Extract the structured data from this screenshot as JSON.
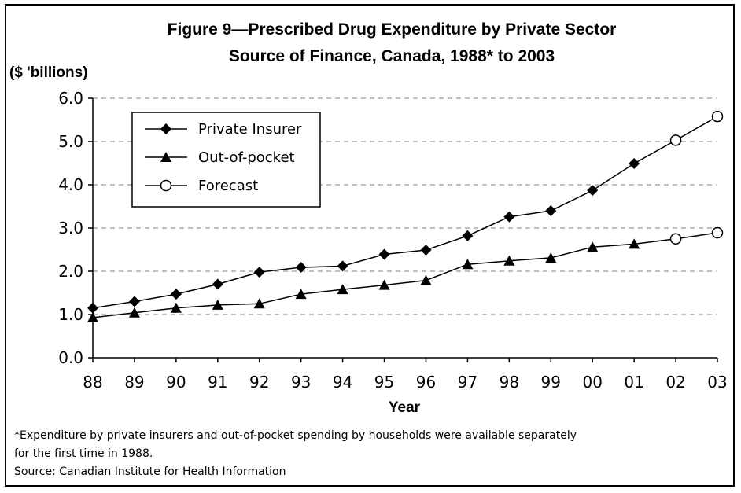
{
  "chart_data": {
    "type": "line",
    "title": [
      "Figure 9—Prescribed Drug Expenditure by Private Sector",
      "Source of Finance, Canada, 1988* to 2003"
    ],
    "unit_label": "($ 'billions)",
    "xlabel": "Year",
    "ylabel": "",
    "categories": [
      "88",
      "89",
      "90",
      "91",
      "92",
      "93",
      "94",
      "95",
      "96",
      "97",
      "98",
      "99",
      "00",
      "01",
      "02",
      "03"
    ],
    "yticks": [
      "0.0",
      "1.0",
      "2.0",
      "3.0",
      "4.0",
      "5.0",
      "6.0"
    ],
    "ylim": [
      0,
      6
    ],
    "grid": "horizontal dashed",
    "legend_position": "top-left",
    "series": [
      {
        "name": "Private Insurer",
        "marker": "diamond",
        "color": "#000000",
        "values": [
          1.15,
          1.3,
          1.47,
          1.7,
          1.98,
          2.09,
          2.12,
          2.39,
          2.49,
          2.82,
          3.26,
          3.4,
          3.87,
          4.49,
          5.03,
          5.58
        ],
        "forecast_from_index": 14
      },
      {
        "name": "Out-of-pocket",
        "marker": "triangle",
        "color": "#000000",
        "values": [
          0.93,
          1.04,
          1.15,
          1.22,
          1.25,
          1.47,
          1.58,
          1.68,
          1.79,
          2.16,
          2.24,
          2.31,
          2.56,
          2.63,
          2.75,
          2.89
        ],
        "forecast_from_index": 14
      }
    ],
    "forecast_legend": {
      "name": "Forecast",
      "marker": "open-circle"
    }
  },
  "footnotes": [
    "*Expenditure by private insurers and out-of-pocket spending by households were available separately",
    "for the first time in 1988.",
    "Source: Canadian Institute for Health Information"
  ]
}
